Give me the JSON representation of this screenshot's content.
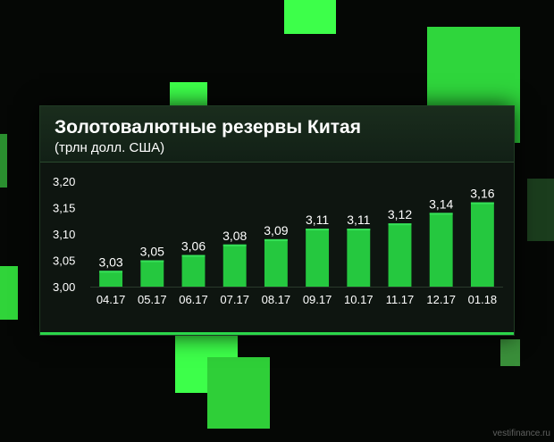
{
  "header": {
    "title": "Золотовалютные резервы Китая",
    "subtitle": "(трлн долл. США)"
  },
  "watermark": "vestifinance.ru",
  "colors": {
    "bar": "#25c83f",
    "bar_top": "#36e058",
    "accent": "#2bd64a",
    "panel": "#0e1510"
  },
  "chart_data": {
    "type": "bar",
    "title": "Золотовалютные резервы Китая",
    "subtitle": "(трлн долл. США)",
    "categories": [
      "04.17",
      "05.17",
      "06.17",
      "07.17",
      "08.17",
      "09.17",
      "10.17",
      "11.17",
      "12.17",
      "01.18"
    ],
    "values": [
      3.03,
      3.05,
      3.06,
      3.08,
      3.09,
      3.11,
      3.11,
      3.12,
      3.14,
      3.16
    ],
    "value_labels": [
      "3,03",
      "3,05",
      "3,06",
      "3,08",
      "3,09",
      "3,11",
      "3,11",
      "3,12",
      "3,14",
      "3,16"
    ],
    "yticks": [
      3.0,
      3.05,
      3.1,
      3.15,
      3.2
    ],
    "ytick_labels": [
      "3,00",
      "3,05",
      "3,10",
      "3,15",
      "3,20"
    ],
    "ylim": [
      3.0,
      3.2
    ],
    "grid": false,
    "legend": "none"
  }
}
